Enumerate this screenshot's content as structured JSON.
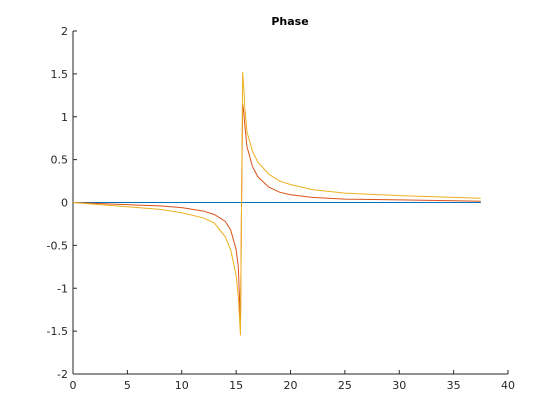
{
  "chart_data": {
    "type": "line",
    "title": "Phase",
    "xlabel": "",
    "ylabel": "",
    "xlim": [
      0,
      40
    ],
    "ylim": [
      -2,
      2
    ],
    "xticks": [
      0,
      5,
      10,
      15,
      20,
      25,
      30,
      35,
      40
    ],
    "yticks": [
      -2,
      -1.5,
      -1,
      -0.5,
      0,
      0.5,
      1,
      1.5,
      2
    ],
    "xtick_labels": [
      "0",
      "5",
      "10",
      "15",
      "20",
      "25",
      "30",
      "35",
      "40"
    ],
    "ytick_labels": [
      "-2",
      "-1.5",
      "-1",
      "-0.5",
      "0",
      "0.5",
      "1",
      "1.5",
      "2"
    ],
    "grid": false,
    "legend": "none",
    "series": [
      {
        "color": "#0072bd",
        "x": [
          0,
          37.5
        ],
        "y": [
          0,
          0
        ]
      },
      {
        "color": "#d95319",
        "x": [
          0,
          2,
          4,
          6,
          8,
          10,
          12,
          13,
          14,
          14.5,
          15,
          15.2,
          15.4,
          15.5,
          15.6,
          15.7,
          15.8,
          16,
          16.5,
          17,
          18,
          19,
          20,
          22,
          25,
          30,
          35,
          37.5
        ],
        "y": [
          0,
          -0.01,
          -0.02,
          -0.03,
          -0.04,
          -0.06,
          -0.1,
          -0.14,
          -0.22,
          -0.32,
          -0.55,
          -0.75,
          -1.42,
          0,
          1.15,
          1.06,
          0.9,
          0.65,
          0.42,
          0.3,
          0.18,
          0.12,
          0.09,
          0.06,
          0.04,
          0.03,
          0.02,
          0.015
        ]
      },
      {
        "color": "#edb120",
        "x": [
          0,
          2,
          4,
          6,
          8,
          10,
          12,
          13,
          14,
          14.5,
          15,
          15.2,
          15.4,
          15.5,
          15.6,
          15.7,
          15.8,
          16,
          16.5,
          17,
          18,
          19,
          20,
          22,
          25,
          30,
          35,
          37.5
        ],
        "y": [
          0,
          -0.02,
          -0.04,
          -0.06,
          -0.08,
          -0.12,
          -0.18,
          -0.24,
          -0.4,
          -0.55,
          -0.85,
          -1.1,
          -1.55,
          0,
          1.52,
          1.35,
          1.1,
          0.82,
          0.6,
          0.47,
          0.33,
          0.25,
          0.21,
          0.15,
          0.11,
          0.08,
          0.06,
          0.05
        ]
      }
    ]
  }
}
